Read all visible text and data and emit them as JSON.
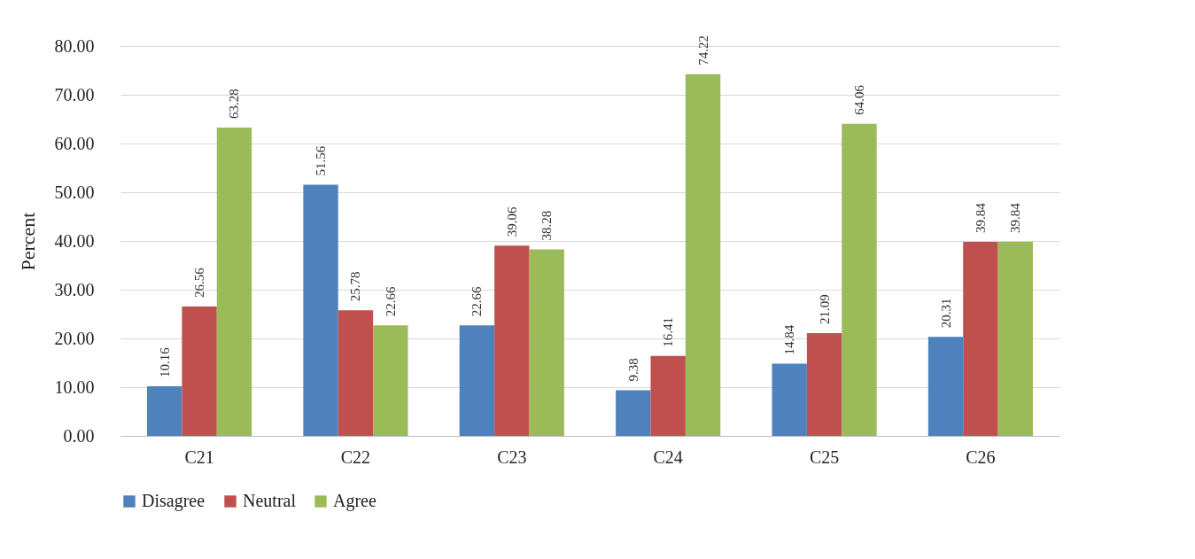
{
  "chart_data": {
    "type": "bar",
    "ylabel": "Percent",
    "categories": [
      "C21",
      "C22",
      "C23",
      "C24",
      "C25",
      "C26"
    ],
    "series": [
      {
        "name": "Disagree",
        "color": "#4f81bd",
        "values": [
          10.16,
          51.56,
          22.66,
          9.38,
          14.84,
          20.31
        ]
      },
      {
        "name": "Neutral",
        "color": "#c0504d",
        "values": [
          26.56,
          25.78,
          39.06,
          16.41,
          21.09,
          39.84
        ]
      },
      {
        "name": "Agree",
        "color": "#9bbb59",
        "values": [
          63.28,
          22.66,
          38.28,
          74.22,
          64.06,
          39.84
        ]
      }
    ],
    "ylim": [
      0,
      80
    ],
    "yticks": [
      {
        "value": 0,
        "label": "0.00"
      },
      {
        "value": 10,
        "label": "10.00"
      },
      {
        "value": 20,
        "label": "20.00"
      },
      {
        "value": 30,
        "label": "30.00"
      },
      {
        "value": 40,
        "label": "40.00"
      },
      {
        "value": 50,
        "label": "50.00"
      },
      {
        "value": 60,
        "label": "60.00"
      },
      {
        "value": 70,
        "label": "70.00"
      },
      {
        "value": 80,
        "label": "80.00"
      }
    ],
    "grid": "y",
    "legend": "bottom",
    "data_labels": true
  }
}
